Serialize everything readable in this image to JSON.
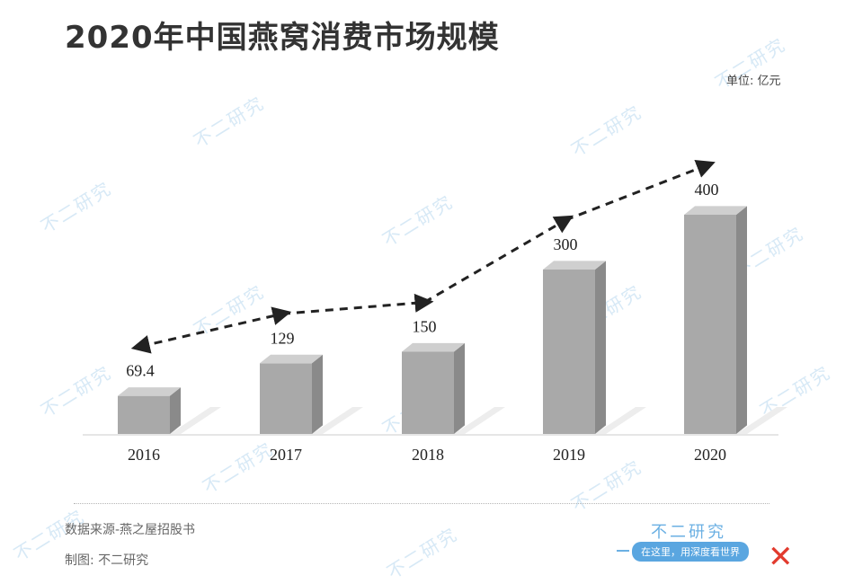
{
  "page": {
    "title": "2020年中国燕窝消费市场规模",
    "unit": "单位: 亿元"
  },
  "chart_data": {
    "type": "bar",
    "title": "2020年中国燕窝消费市场规模",
    "categories": [
      "2016",
      "2017",
      "2018",
      "2019",
      "2020"
    ],
    "values": [
      69.4,
      129,
      150,
      300,
      400
    ],
    "value_labels": [
      "69.4",
      "129",
      "150",
      "300",
      "400"
    ],
    "unit": "亿元",
    "trend_line": "dashed-arrow",
    "legend": "none",
    "grid": false,
    "colors": {
      "bar_front": "#a9a9a9",
      "bar_top": "#cfcfcf",
      "bar_side": "#8a8a8a",
      "trend": "#222222"
    }
  },
  "footer": {
    "source": "数据来源-燕之屋招股书",
    "credit": "制图: 不二研究",
    "brand": "不二研究",
    "slogan": "在这里，用深度看世界"
  },
  "watermark": {
    "text": "不二研究"
  }
}
